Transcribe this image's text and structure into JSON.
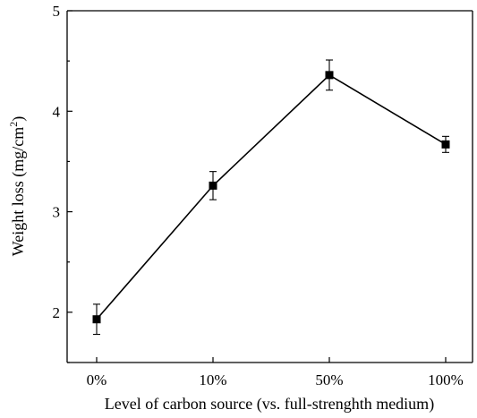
{
  "chart_data": {
    "type": "line",
    "categories": [
      "0%",
      "10%",
      "50%",
      "100%"
    ],
    "series": [
      {
        "values": [
          1.93,
          3.26,
          4.36,
          3.67
        ],
        "error": [
          0.15,
          0.14,
          0.15,
          0.08
        ]
      }
    ],
    "xlabel": "Level of carbon source (vs. full-strenghth medium)",
    "ylabel": {
      "base": "Weight loss (mg/cm",
      "sup": "2",
      "close": ")"
    },
    "ylim": [
      1.5,
      5
    ],
    "yticks": [
      2,
      3,
      4,
      5
    ],
    "grid": false,
    "legend": "none",
    "marker": "square",
    "color": "#000000"
  }
}
